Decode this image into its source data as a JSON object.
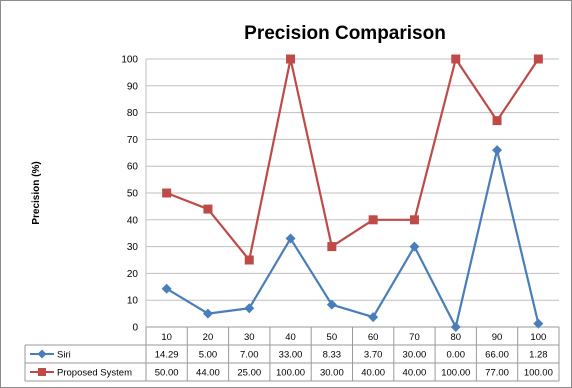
{
  "chart_data": {
    "type": "line",
    "title": "Precision Comparison",
    "xlabel": "",
    "ylabel": "Precision (%)",
    "ylim": [
      0,
      100
    ],
    "yticks": [
      0,
      10,
      20,
      30,
      40,
      50,
      60,
      70,
      80,
      90,
      100
    ],
    "grid": true,
    "legend": "data-table",
    "categories": [
      "10",
      "20",
      "30",
      "40",
      "50",
      "60",
      "70",
      "80",
      "90",
      "100"
    ],
    "series": [
      {
        "name": "Siri",
        "color": "#4a7ebb",
        "marker": "diamond",
        "values": [
          14.29,
          5.0,
          7.0,
          33.0,
          8.33,
          3.7,
          30.0,
          0.0,
          66.0,
          1.28
        ],
        "labels": [
          "14.29",
          "5.00",
          "7.00",
          "33.00",
          "8.33",
          "3.70",
          "30.00",
          "0.00",
          "66.00",
          "1.28"
        ]
      },
      {
        "name": "Proposed System",
        "color": "#be4b48",
        "marker": "square",
        "values": [
          50.0,
          44.0,
          25.0,
          100.0,
          30.0,
          40.0,
          40.0,
          100.0,
          77.0,
          100.0
        ],
        "labels": [
          "50.00",
          "44.00",
          "25.00",
          "100.00",
          "30.00",
          "40.00",
          "40.00",
          "100.00",
          "77.00",
          "100.00"
        ]
      }
    ]
  }
}
